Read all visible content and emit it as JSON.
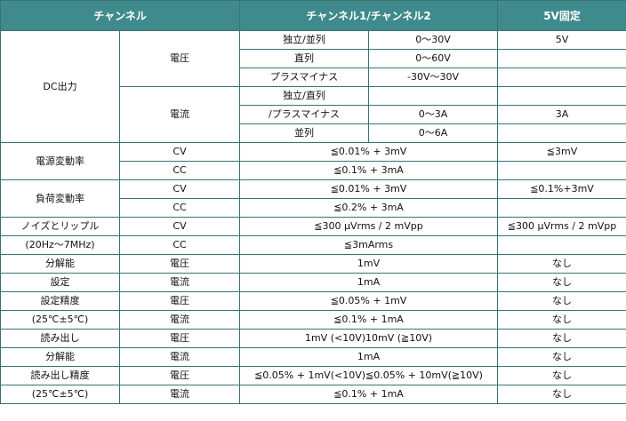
{
  "header": {
    "col1": "チャンネル",
    "col2": "チャンネル1/チャンネル2",
    "col3": "5V固定"
  },
  "dc": {
    "label": "DC出力",
    "voltage": {
      "label": "電圧",
      "rows": [
        {
          "mode": "独立/並列",
          "ch": "0〜30V",
          "fixed": "5V"
        },
        {
          "mode": "直列",
          "ch": "0〜60V",
          "fixed": ""
        },
        {
          "mode": "プラスマイナス",
          "ch": "-30V〜30V",
          "fixed": ""
        }
      ]
    },
    "current": {
      "label": "電流",
      "rows": [
        {
          "mode": "独立/直列",
          "ch": "",
          "fixed": ""
        },
        {
          "mode": "/プラスマイナス",
          "ch": "0〜3A",
          "fixed": "3A"
        },
        {
          "mode": "並列",
          "ch": "0〜6A",
          "fixed": ""
        }
      ]
    }
  },
  "line_reg": {
    "label": "電源変動率",
    "cv_mode": "CV",
    "cv_ch": "≦0.01% + 3mV",
    "cv_fixed": "≦3mV",
    "cc_mode": "CC",
    "cc_ch": "≦0.1% + 3mA",
    "cc_fixed": ""
  },
  "load_reg": {
    "label": "負荷変動率",
    "cv_mode": "CV",
    "cv_ch": "≦0.01% + 3mV",
    "cv_fixed": "≦0.1%+3mV",
    "cc_mode": "CC",
    "cc_ch": "≦0.2% + 3mA",
    "cc_fixed": ""
  },
  "ripple": {
    "label": "ノイズとリップル",
    "sublabel": "(20Hz〜7MHz)",
    "cv_mode": "CV",
    "cv_ch": "≦300 μVrms / 2 mVpp",
    "cv_fixed": "≦300 μVrms / 2 mVpp",
    "cc_mode": "CC",
    "cc_ch": "≦3mArms",
    "cc_fixed": ""
  },
  "set_res": {
    "label1": "分解能",
    "label2": "設定",
    "v_mode": "電圧",
    "v_ch": "1mV",
    "v_fixed": "なし",
    "a_mode": "電流",
    "a_ch": "1mA",
    "a_fixed": "なし"
  },
  "set_acc": {
    "label1": "設定精度",
    "label2": "(25℃±5℃)",
    "v_mode": "電圧",
    "v_ch": "≦0.05% + 1mV",
    "v_fixed": "なし",
    "a_mode": "電流",
    "a_ch": "≦0.1% + 1mA",
    "a_fixed": "なし"
  },
  "read_res": {
    "label1": "読み出し",
    "label2": "分解能",
    "v_mode": "電圧",
    "v_ch": "1mV (<10V)10mV (≧10V)",
    "v_fixed": "なし",
    "a_mode": "電流",
    "a_ch": "1mA",
    "a_fixed": "なし"
  },
  "read_acc": {
    "label1": "読み出し精度",
    "label2": "(25℃±5℃)",
    "v_mode": "電圧",
    "v_ch": "≦0.05% + 1mV(<10V)≦0.05% + 10mV(≧10V)",
    "v_fixed": "なし",
    "a_mode": "電流",
    "a_ch": "≦0.1% + 1mA",
    "a_fixed": "なし"
  }
}
